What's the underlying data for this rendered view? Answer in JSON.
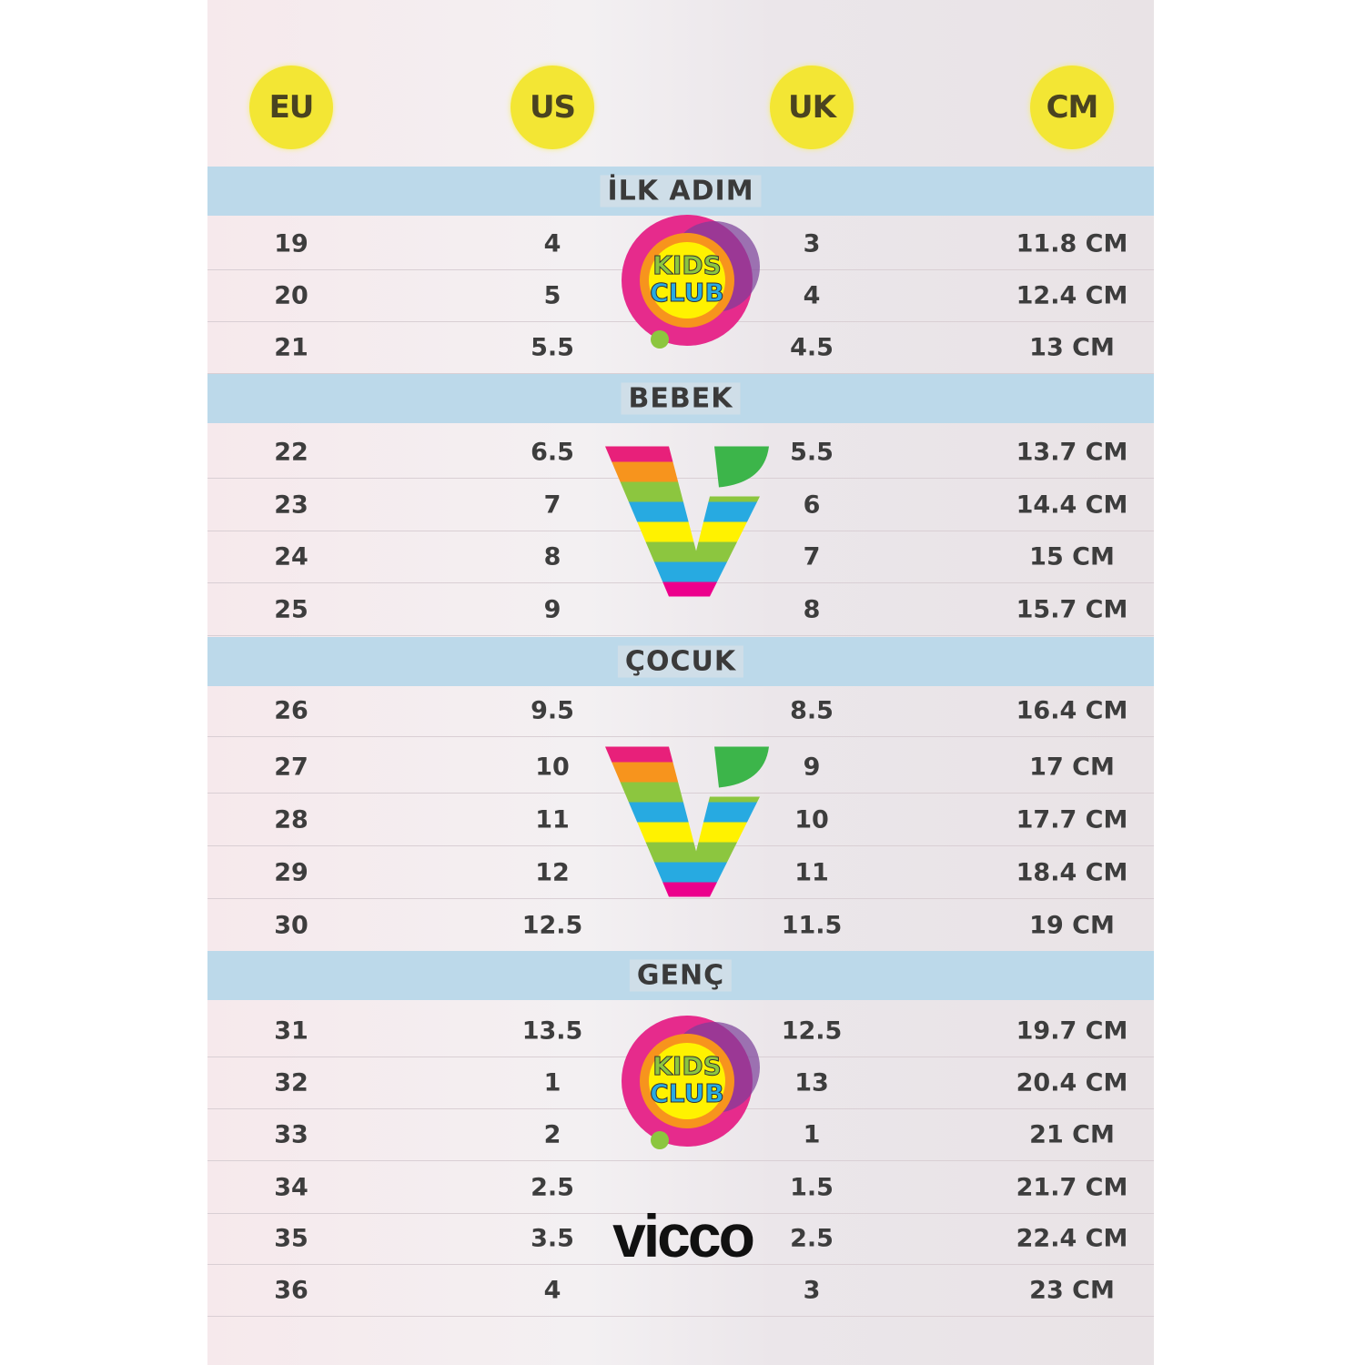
{
  "headers": [
    "EU",
    "US",
    "UK",
    "CM"
  ],
  "header_color": "#f3e634",
  "band_color": "#bcd9ea",
  "sections": [
    {
      "title": "İLK ADIM",
      "rows": [
        [
          "19",
          "4",
          "3",
          "11.8 CM"
        ],
        [
          "20",
          "5",
          "4",
          "12.4 CM"
        ],
        [
          "21",
          "5.5",
          "4.5",
          "13 CM"
        ]
      ]
    },
    {
      "title": "BEBEK",
      "rows": [
        [
          "22",
          "6.5",
          "5.5",
          "13.7 CM"
        ],
        [
          "23",
          "7",
          "6",
          "14.4 CM"
        ],
        [
          "24",
          "8",
          "7",
          "15 CM"
        ],
        [
          "25",
          "9",
          "8",
          "15.7 CM"
        ]
      ]
    },
    {
      "title": "ÇOCUK",
      "rows": [
        [
          "26",
          "9.5",
          "8.5",
          "16.4 CM"
        ],
        [
          "27",
          "10",
          "9",
          "17 CM"
        ],
        [
          "28",
          "11",
          "10",
          "17.7 CM"
        ],
        [
          "29",
          "12",
          "11",
          "18.4 CM"
        ],
        [
          "30",
          "12.5",
          "11.5",
          "19 CM"
        ]
      ]
    },
    {
      "title": "GENÇ",
      "rows": [
        [
          "31",
          "13.5",
          "12.5",
          "19.7 CM"
        ],
        [
          "32",
          "1",
          "13",
          "20.4 CM"
        ],
        [
          "33",
          "2",
          "1",
          "21 CM"
        ],
        [
          "34",
          "2.5",
          "1.5",
          "21.7 CM"
        ],
        [
          "35",
          "3.5",
          "2.5",
          "22.4 CM"
        ],
        [
          "36",
          "4",
          "3",
          "23 CM"
        ]
      ]
    }
  ],
  "logos": {
    "kids_club": "KIDS CLUB",
    "brand": "vicco"
  }
}
